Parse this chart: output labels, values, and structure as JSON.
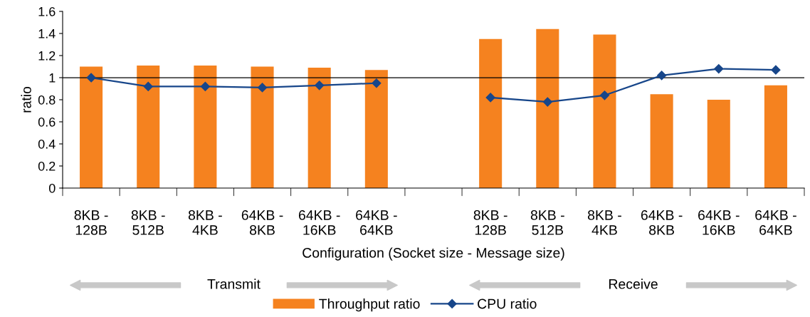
{
  "chart_data": {
    "type": "bar",
    "xlabel": "Configuration (Socket size - Message size)",
    "ylabel": "ratio",
    "categories": [
      "8KB -\n128B",
      "8KB -\n512B",
      "8KB -\n4KB",
      "64KB -\n8KB",
      "64KB -\n16KB",
      "64KB -\n64KB",
      null,
      "8KB -\n128B",
      "8KB -\n512B",
      "8KB -\n4KB",
      "64KB -\n8KB",
      "64KB -\n16KB",
      "64KB -\n64KB"
    ],
    "series": [
      {
        "name": "Throughput ratio",
        "color": "#f5821f",
        "values": [
          1.1,
          1.11,
          1.11,
          1.1,
          1.09,
          1.07,
          null,
          1.35,
          1.44,
          1.39,
          0.85,
          0.8,
          0.93
        ]
      },
      {
        "name": "CPU ratio",
        "type": "line",
        "color": "#17468a",
        "marker": "diamond",
        "values": [
          1.0,
          0.92,
          0.92,
          0.91,
          0.93,
          0.95,
          null,
          0.82,
          0.78,
          0.84,
          1.02,
          1.08,
          1.07
        ]
      }
    ],
    "ylim": [
      0,
      1.6
    ],
    "yticks": [
      0,
      0.2,
      0.4,
      0.6,
      0.8,
      1,
      1.2,
      1.4,
      1.6
    ],
    "ref_lines": [
      {
        "axis": "y",
        "value": 1,
        "color": "#000000"
      }
    ],
    "annotations": [
      "Transmit",
      "Receive"
    ],
    "grid": false,
    "legend": "bottom"
  }
}
